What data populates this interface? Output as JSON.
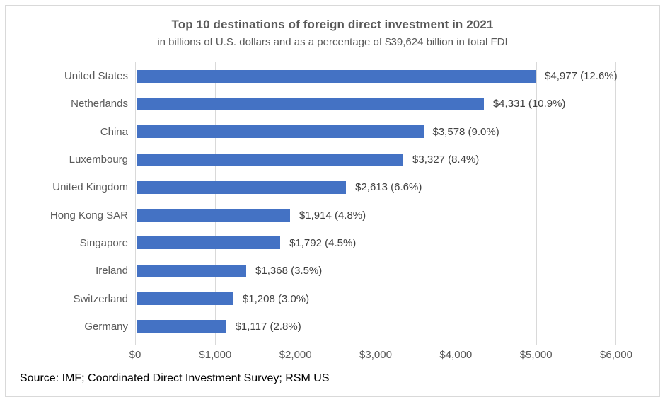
{
  "header": {
    "title": "Top 10 destinations of foreign direct investment in 2021",
    "subtitle": "in billions of U.S. dollars and as a percentage of $39,624 billion in total FDI"
  },
  "footer": {
    "source": "Source: IMF; Coordinated Direct Investment Survey; RSM US"
  },
  "colors": {
    "bar": "#4472c4",
    "gridline": "#d9d9d9",
    "frame_border": "#d9d9d9",
    "title_text": "#595959",
    "axis_text": "#595959",
    "value_text": "#404040",
    "source_text": "#000000"
  },
  "chart_data": {
    "type": "bar",
    "orientation": "horizontal",
    "title": "Top 10 destinations of foreign direct investment in 2021",
    "subtitle": "in billions of U.S. dollars and as a percentage of $39,624 billion in total FDI",
    "categories": [
      "United States",
      "Netherlands",
      "China",
      "Luxembourg",
      "United Kingdom",
      "Hong Kong SAR",
      "Singapore",
      "Ireland",
      "Switzerland",
      "Germany"
    ],
    "values": [
      4977,
      4331,
      3578,
      3327,
      2613,
      1914,
      1792,
      1368,
      1208,
      1117
    ],
    "percent_of_total": [
      12.6,
      10.9,
      9.0,
      8.4,
      6.6,
      4.8,
      4.5,
      3.5,
      3.0,
      2.8
    ],
    "value_labels": [
      "$4,977 (12.6%)",
      "$4,331 (10.9%)",
      "$3,578 (9.0%)",
      "$3,327 (8.4%)",
      "$2,613 (6.6%)",
      "$1,914 (4.8%)",
      "$1,792 (4.5%)",
      "$1,368 (3.5%)",
      "$1,208 (3.0%)",
      "$1,117 (2.8%)"
    ],
    "total_fdi_billions": 39624,
    "xlabel": "",
    "ylabel": "",
    "xlim": [
      0,
      6000
    ],
    "x_ticks": [
      "$0",
      "$1,000",
      "$2,000",
      "$3,000",
      "$4,000",
      "$5,000",
      "$6,000"
    ],
    "x_tick_values": [
      0,
      1000,
      2000,
      3000,
      4000,
      5000,
      6000
    ],
    "grid": "vertical",
    "legend": "none"
  }
}
